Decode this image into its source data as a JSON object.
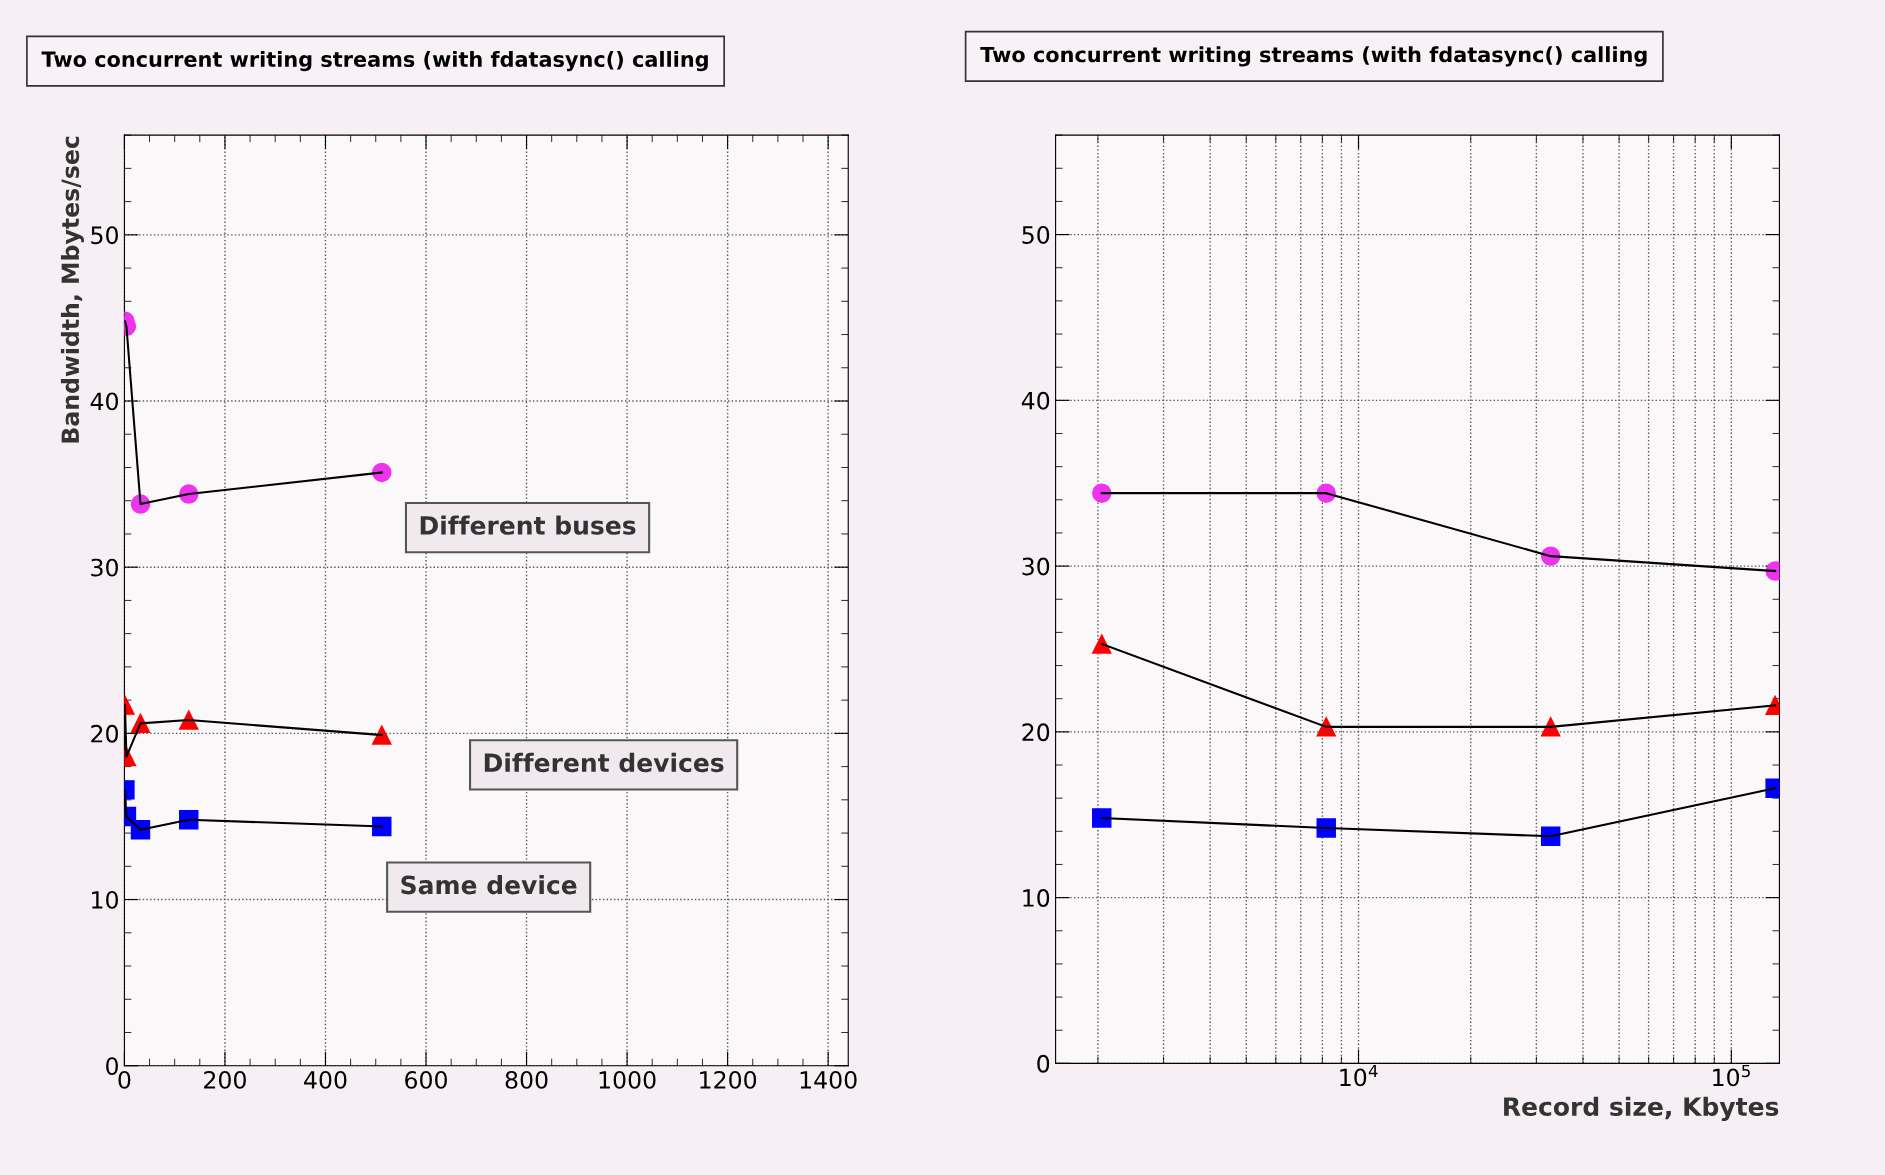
{
  "chart_data": [
    {
      "type": "line",
      "title": "Two concurrent writing streams (with fdatasync() calling",
      "ylabel": "Bandwidth, Mbytes/sec",
      "xlim": [
        0,
        1440
      ],
      "xticks": [
        0,
        200,
        400,
        600,
        800,
        1000,
        1200,
        1400
      ],
      "ylim": [
        0,
        56
      ],
      "yticks": [
        0,
        10,
        20,
        30,
        40,
        50
      ],
      "grid": true,
      "legend": false,
      "line_style": "solid",
      "tick_labels": true,
      "series": [
        {
          "marker": "circle",
          "color": "#ee33ee",
          "x": [
            1,
            4,
            32,
            128,
            512
          ],
          "values": [
            44.8,
            44.5,
            33.8,
            34.4,
            35.7
          ]
        },
        {
          "marker": "triangle",
          "color": "#ff0000",
          "x": [
            1,
            4,
            32,
            128,
            512
          ],
          "values": [
            21.7,
            18.6,
            20.6,
            20.8,
            19.9
          ]
        },
        {
          "marker": "square",
          "color": "#0000ff",
          "x": [
            1,
            4,
            32,
            128,
            512
          ],
          "values": [
            16.6,
            15.0,
            14.2,
            14.8,
            14.4
          ]
        }
      ],
      "annotations": [
        "Different buses",
        "Different devices",
        "Same device"
      ]
    },
    {
      "type": "line",
      "title": "Two concurrent writing streams (with fdatasync() calling",
      "xlabel": "Record size, Kbytes",
      "log": "x",
      "xlim": [
        1540,
        134600
      ],
      "xticks": [
        {
          "value": 10000,
          "label": "10$^{4}$"
        },
        {
          "value": 100000,
          "label": "10$^{5}$"
        }
      ],
      "ylim": [
        0,
        56
      ],
      "yticks": [
        0,
        10,
        20,
        30,
        40,
        50
      ],
      "grid": true,
      "legend": false,
      "line_style": "solid",
      "series": [
        {
          "marker": "circle",
          "color": "#ee33ee",
          "x": [
            2048,
            8192,
            32768,
            131072
          ],
          "values": [
            34.4,
            34.4,
            30.6,
            29.7
          ]
        },
        {
          "marker": "triangle",
          "color": "#ff0000",
          "x": [
            2048,
            8192,
            32768,
            131072
          ],
          "values": [
            25.3,
            20.3,
            20.3,
            21.6
          ]
        },
        {
          "marker": "square",
          "color": "#0000ff",
          "x": [
            2048,
            8192,
            32768,
            131072
          ],
          "values": [
            14.8,
            14.2,
            13.7,
            16.6
          ]
        }
      ]
    }
  ]
}
